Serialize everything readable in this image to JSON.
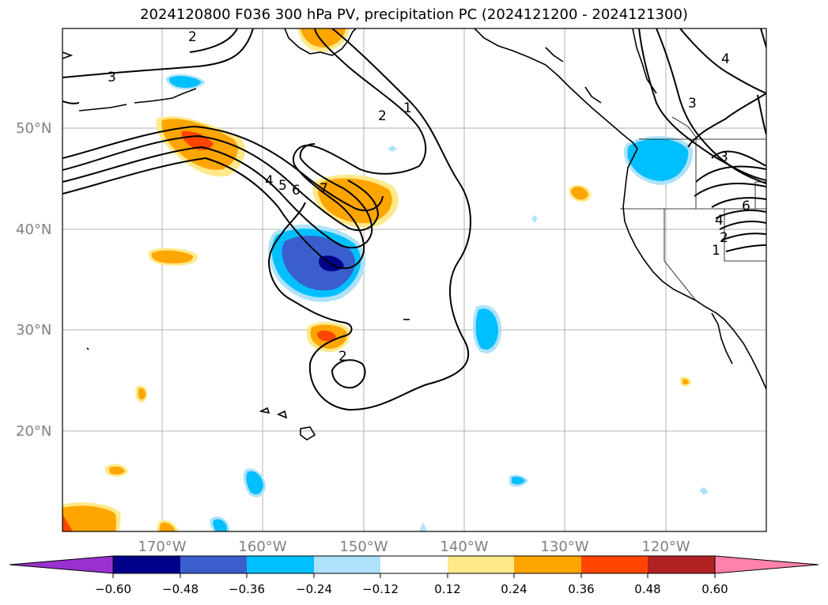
{
  "title": "2024120800 F036 300 hPa PV, precipitation PC (2024121200 - 2024121300)",
  "lat_labels": [
    "50°N",
    "40°N",
    "30°N",
    "20°N"
  ],
  "lon_labels": [
    "170°W",
    "160°W",
    "150°W",
    "140°W",
    "130°W",
    "120°W"
  ],
  "contour_labels": [
    "3",
    "2",
    "2",
    "1",
    "4",
    "5",
    "6",
    "7",
    "2",
    "3",
    "4",
    "3",
    "6",
    "4",
    "2",
    "1"
  ],
  "colorbar": {
    "colors": [
      "#9b30d0",
      "#00008b",
      "#3a5fcd",
      "#00bfff",
      "#aee2fa",
      "#ffffff",
      "#ffe98a",
      "#ffa500",
      "#ff4500",
      "#b22222",
      "#ff82ab"
    ],
    "ticks": [
      "−0.60",
      "−0.48",
      "−0.36",
      "−0.24",
      "−0.12",
      "0.12",
      "0.24",
      "0.36",
      "0.48",
      "0.60"
    ]
  }
}
